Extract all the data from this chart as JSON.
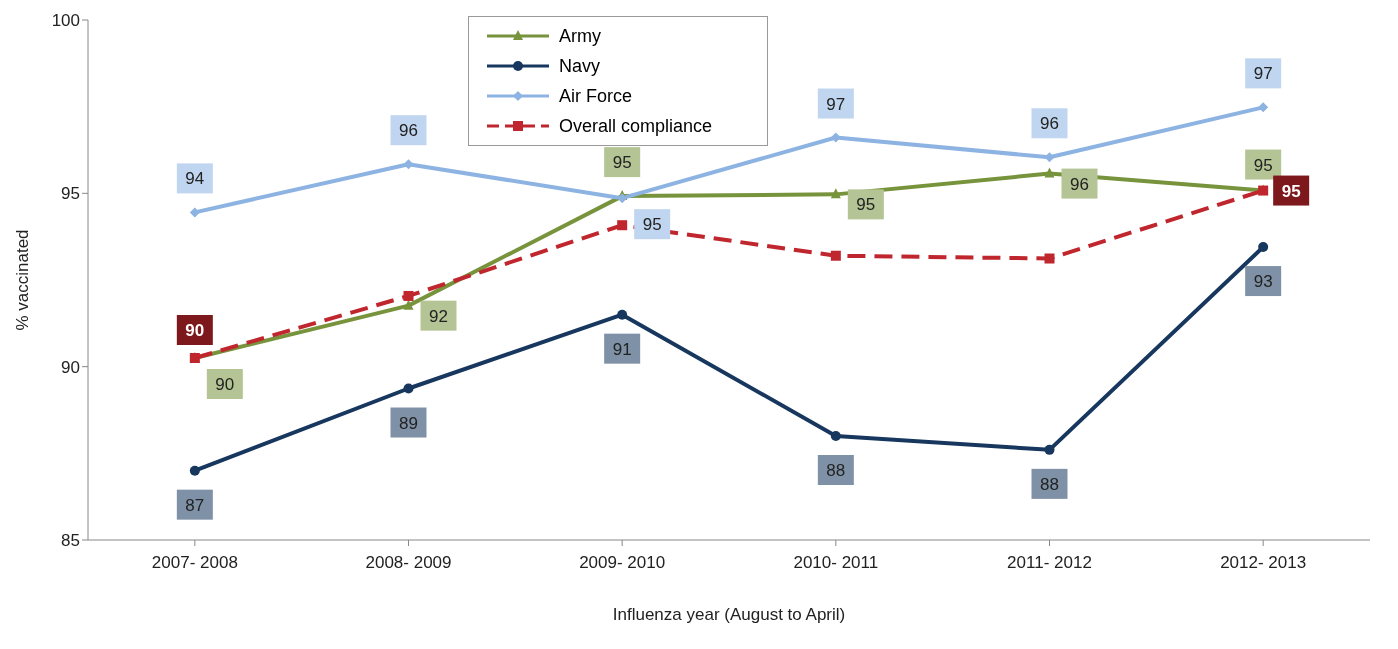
{
  "chart_data": {
    "type": "line",
    "xlabel": "Influenza year (August to April)",
    "ylabel": "% vaccinated",
    "categories": [
      "2007- 2008",
      "2008- 2009",
      "2009- 2010",
      "2010- 2011",
      "2011- 2012",
      "2012- 2013"
    ],
    "series": [
      {
        "name": "Army",
        "color": "#77933c",
        "marker": "triangle",
        "line_style": "solid",
        "values": [
          90.25,
          91.76,
          94.92,
          94.97,
          95.57,
          95.08
        ],
        "value_labels": [
          "90",
          "92",
          "95",
          "95",
          "96",
          "95"
        ]
      },
      {
        "name": "Navy",
        "color": "#17375e",
        "marker": "circle",
        "line_style": "solid",
        "values": [
          87.0,
          89.37,
          91.5,
          88.0,
          87.6,
          93.45
        ],
        "value_labels": [
          "87",
          "89",
          "91",
          "88",
          "88",
          "93"
        ]
      },
      {
        "name": "Air Force",
        "color": "#8db3e2",
        "marker": "diamond",
        "line_style": "solid",
        "values": [
          94.45,
          95.84,
          94.86,
          96.61,
          96.04,
          97.48
        ],
        "value_labels": [
          "94",
          "96",
          "95",
          "97",
          "96",
          "97"
        ]
      },
      {
        "name": "Overall compliance",
        "color": "#c0262d",
        "marker": "square",
        "line_style": "dashed",
        "values": [
          90.25,
          92.04,
          94.08,
          93.2,
          93.12,
          95.08
        ],
        "value_labels": [
          "90",
          null,
          null,
          null,
          null,
          "95"
        ]
      }
    ],
    "ylim": [
      85,
      100
    ],
    "yticks": [
      85,
      90,
      95,
      100
    ],
    "legend": "top"
  }
}
